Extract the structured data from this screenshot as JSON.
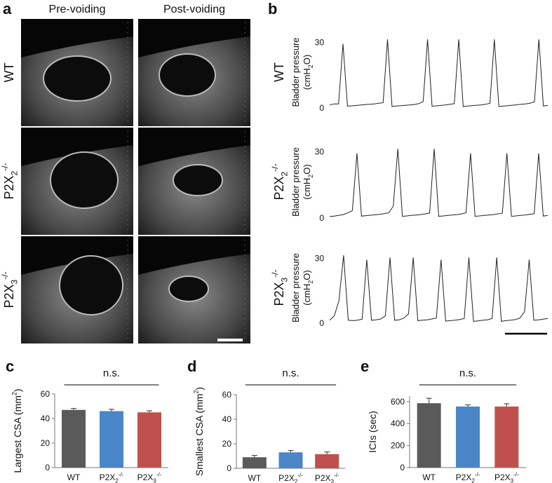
{
  "panel_a": {
    "label": "a",
    "columns": [
      "Pre-voiding",
      "Post-voiding"
    ],
    "rows": [
      [
        "WT"
      ],
      [
        "P2X",
        "2",
        "-/-"
      ],
      [
        "P2X",
        "3",
        "-/-"
      ]
    ]
  },
  "panel_b_label": "b",
  "chart_data": [
    {
      "type": "line",
      "row_label": [
        "WT"
      ],
      "ylabel": [
        "Bladder pressure",
        "(cmH",
        "2",
        "O)"
      ],
      "ylim": [
        -1,
        33
      ],
      "yticks": [
        0,
        30
      ],
      "color": "#222222",
      "values": [
        1,
        1.5,
        1.5,
        29,
        0.5,
        0.6,
        0.8,
        1,
        1.2,
        1.3,
        1.5,
        1.8,
        2,
        31,
        0.3,
        0.5,
        0.7,
        0.9,
        1,
        1.2,
        1.6,
        2.5,
        31,
        0.4,
        0.6,
        0.8,
        1,
        1.3,
        1.6,
        31,
        0.3,
        0.5,
        0.7,
        0.9,
        1,
        1.3,
        1.8,
        31,
        0.3,
        0.5,
        0.7,
        0.9,
        1.1,
        1.3,
        1.5,
        1.8,
        2.5,
        31,
        0.5,
        0.8
      ]
    },
    {
      "type": "line",
      "row_label": [
        "P2X",
        "2",
        "-/-"
      ],
      "ylabel": [
        "Bladder pressure",
        "(cmH",
        "2",
        "O)"
      ],
      "ylim": [
        -1,
        33
      ],
      "yticks": [
        0,
        30
      ],
      "color": "#222222",
      "values": [
        0.3,
        0.5,
        0.8,
        1.2,
        2,
        3,
        29,
        0.5,
        0.7,
        0.9,
        1.1,
        1.3,
        1.6,
        2,
        5,
        31,
        0.4,
        0.6,
        0.8,
        1,
        1.2,
        1.5,
        1.9,
        31,
        0.4,
        0.6,
        0.8,
        1,
        1.2,
        1.5,
        2,
        29,
        0.4,
        0.6,
        0.8,
        1,
        1.2,
        1.5,
        1.8,
        29,
        0.4,
        0.6,
        0.8,
        1,
        1.3,
        1.6,
        29,
        0.5,
        0.8
      ]
    },
    {
      "type": "line",
      "row_label": [
        "P2X",
        "3",
        "-/-"
      ],
      "ylabel": [
        "Bladder pressure",
        "(cmH",
        "2",
        "O)"
      ],
      "ylim": [
        -1,
        33
      ],
      "yticks": [
        0,
        30
      ],
      "color": "#222222",
      "values": [
        1,
        3,
        10,
        31,
        1,
        0.8,
        1,
        1.5,
        29,
        1,
        1.2,
        1.6,
        3,
        30,
        1,
        1.2,
        2,
        4,
        30,
        0.8,
        1,
        1.2,
        1.6,
        2,
        29,
        0.6,
        0.8,
        1,
        1.3,
        1.8,
        30,
        0.5,
        0.7,
        1,
        1.2,
        1.8,
        30,
        0.5,
        0.8,
        1,
        1.3,
        2,
        5,
        29,
        1,
        1.2,
        1.5,
        1.8
      ]
    },
    {
      "type": "bar",
      "panel": "c",
      "ylabel": [
        "Largest CSA (mm",
        "2",
        ")"
      ],
      "categories": [
        [
          "WT"
        ],
        [
          "P2X",
          "2",
          "-/-"
        ],
        [
          "P2X",
          "3",
          "-/-"
        ]
      ],
      "values": [
        47,
        46,
        45
      ],
      "errors": [
        1.2,
        1.5,
        1.3
      ],
      "colors": [
        "#5a5a5a",
        "#4a86c8",
        "#c0504d"
      ],
      "ylim": [
        0,
        60
      ],
      "yticks": [
        0,
        20,
        40,
        60
      ],
      "annotation": "n.s."
    },
    {
      "type": "bar",
      "panel": "d",
      "ylabel": [
        "Smallest CSA (mm",
        "2",
        ")"
      ],
      "categories": [
        [
          "WT"
        ],
        [
          "P2X",
          "2",
          "-/-"
        ],
        [
          "P2X",
          "3",
          "-/-"
        ]
      ],
      "values": [
        9,
        13,
        11.5
      ],
      "errors": [
        1.5,
        1.5,
        1.8
      ],
      "colors": [
        "#5a5a5a",
        "#4a86c8",
        "#c0504d"
      ],
      "ylim": [
        0,
        60
      ],
      "yticks": [
        0,
        20,
        40,
        60
      ],
      "annotation": "n.s."
    },
    {
      "type": "bar",
      "panel": "e",
      "ylabel": [
        "ICIs (sec)"
      ],
      "categories": [
        [
          "WT"
        ],
        [
          "P2X",
          "2",
          "-/-"
        ],
        [
          "P2X",
          "3",
          "-/-"
        ]
      ],
      "values": [
        585,
        555,
        555
      ],
      "errors": [
        45,
        15,
        25
      ],
      "colors": [
        "#5a5a5a",
        "#4a86c8",
        "#c0504d"
      ],
      "ylim": [
        0,
        650
      ],
      "yticks": [
        0,
        200,
        400,
        600
      ],
      "annotation": "n.s."
    }
  ]
}
